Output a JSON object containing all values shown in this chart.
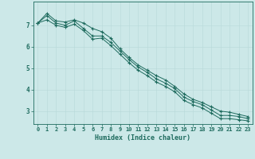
{
  "xlabel": "Humidex (Indice chaleur)",
  "bg_color": "#cce8e8",
  "grid_color_major": "#b8d8d8",
  "grid_color_minor": "#d8ecec",
  "line_color": "#1e6b5e",
  "x_values": [
    0,
    1,
    2,
    3,
    4,
    5,
    6,
    7,
    8,
    9,
    10,
    11,
    12,
    13,
    14,
    15,
    16,
    17,
    18,
    19,
    20,
    21,
    22,
    23
  ],
  "line1_y": [
    7.1,
    7.55,
    7.2,
    7.15,
    7.25,
    7.1,
    6.85,
    6.7,
    6.4,
    5.9,
    5.5,
    5.15,
    4.9,
    4.65,
    4.45,
    4.15,
    3.8,
    3.55,
    3.4,
    3.2,
    3.0,
    2.95,
    2.85,
    2.75
  ],
  "line2_y": [
    7.1,
    7.45,
    7.1,
    7.0,
    7.2,
    6.85,
    6.5,
    6.5,
    6.2,
    5.8,
    5.4,
    5.05,
    4.8,
    4.5,
    4.3,
    4.05,
    3.65,
    3.45,
    3.3,
    3.05,
    2.8,
    2.8,
    2.75,
    2.65
  ],
  "line3_y": [
    7.1,
    7.25,
    7.0,
    6.9,
    7.05,
    6.75,
    6.35,
    6.4,
    6.05,
    5.65,
    5.25,
    4.9,
    4.65,
    4.35,
    4.15,
    3.9,
    3.5,
    3.3,
    3.15,
    2.9,
    2.65,
    2.65,
    2.6,
    2.55
  ],
  "ylim": [
    2.4,
    8.1
  ],
  "xlim": [
    -0.5,
    23.5
  ],
  "yticks": [
    3,
    4,
    5,
    6,
    7
  ],
  "xtick_labels": [
    "0",
    "1",
    "2",
    "3",
    "4",
    "5",
    "6",
    "7",
    "8",
    "9",
    "10",
    "11",
    "12",
    "13",
    "14",
    "15",
    "16",
    "17",
    "18",
    "19",
    "20",
    "21",
    "22",
    "23"
  ],
  "marker": "+",
  "markersize": 3,
  "markeredgewidth": 0.8,
  "linewidth": 0.7,
  "tick_fontsize": 5,
  "xlabel_fontsize": 6,
  "ytick_fontsize": 5.5
}
